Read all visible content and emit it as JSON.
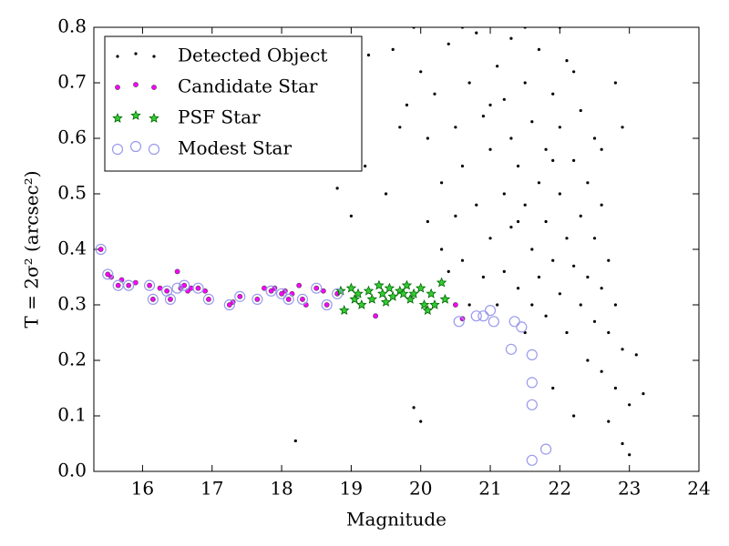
{
  "chart_data": {
    "type": "scatter",
    "xlabel": "Magnitude",
    "ylabel": "T = 2σ² (arcsec²)",
    "xlim": [
      15.3,
      24
    ],
    "ylim": [
      0,
      0.8
    ],
    "xticks": [
      16,
      17,
      18,
      19,
      20,
      21,
      22,
      23,
      24
    ],
    "yticks": [
      {
        "value": 0,
        "label": "0.0"
      },
      0.1,
      0.2,
      0.3,
      0.4,
      0.5,
      0.6,
      0.7,
      0.8
    ],
    "legend": "upper left",
    "series": [
      {
        "name": "Detected Object",
        "color": "#000000",
        "marker": "dot",
        "x": [
          18.8,
          19.0,
          19.1,
          19.2,
          19.25,
          19.5,
          19.6,
          19.9,
          20.0,
          18.2,
          19.7,
          19.8,
          19.9,
          20.0,
          20.1,
          20.1,
          20.2,
          20.3,
          20.3,
          20.4,
          20.4,
          20.5,
          20.5,
          20.6,
          20.6,
          20.7,
          20.7,
          20.8,
          20.8,
          20.9,
          20.9,
          21.0,
          21.0,
          21.1,
          21.1,
          21.2,
          21.2,
          21.2,
          21.3,
          21.3,
          21.3,
          21.4,
          21.4,
          21.5,
          21.5,
          21.5,
          21.6,
          21.6,
          21.6,
          21.7,
          21.7,
          21.7,
          21.8,
          21.8,
          21.8,
          21.9,
          21.9,
          21.9,
          22.0,
          22.0,
          22.0,
          22.1,
          22.1,
          22.1,
          22.2,
          22.2,
          22.2,
          22.3,
          22.3,
          22.3,
          22.4,
          22.4,
          22.4,
          22.5,
          22.5,
          22.5,
          22.6,
          22.6,
          22.6,
          22.7,
          22.7,
          22.7,
          22.8,
          22.8,
          22.9,
          22.9,
          23.0,
          23.1,
          23.2,
          23.0,
          22.8,
          22.9,
          22.0,
          21.5,
          20.6,
          21.0,
          21.4,
          21.9,
          22.2,
          22.6
        ],
        "values": [
          0.51,
          0.46,
          0.57,
          0.55,
          0.75,
          0.5,
          0.76,
          0.115,
          0.09,
          0.055,
          0.62,
          0.66,
          0.8,
          0.72,
          0.6,
          0.45,
          0.68,
          0.52,
          0.4,
          0.77,
          0.36,
          0.62,
          0.46,
          0.55,
          0.38,
          0.7,
          0.3,
          0.79,
          0.48,
          0.64,
          0.35,
          0.58,
          0.42,
          0.73,
          0.3,
          0.67,
          0.5,
          0.36,
          0.78,
          0.44,
          0.6,
          0.55,
          0.33,
          0.7,
          0.48,
          0.25,
          0.63,
          0.4,
          0.3,
          0.76,
          0.52,
          0.35,
          0.58,
          0.45,
          0.28,
          0.68,
          0.38,
          0.15,
          0.62,
          0.5,
          0.32,
          0.74,
          0.42,
          0.25,
          0.56,
          0.37,
          0.1,
          0.65,
          0.46,
          0.3,
          0.52,
          0.35,
          0.2,
          0.6,
          0.42,
          0.27,
          0.48,
          0.33,
          0.18,
          0.38,
          0.25,
          0.09,
          0.3,
          0.15,
          0.22,
          0.05,
          0.12,
          0.21,
          0.14,
          0.03,
          0.7,
          0.62,
          0.8,
          0.8,
          0.8,
          0.66,
          0.45,
          0.56,
          0.72,
          0.58
        ]
      },
      {
        "name": "Candidate Star",
        "color": "#ff00ff",
        "marker": "circle",
        "x": [
          15.4,
          15.5,
          15.55,
          15.65,
          15.7,
          15.8,
          15.9,
          16.1,
          16.15,
          16.25,
          16.35,
          16.4,
          16.5,
          16.55,
          16.6,
          16.65,
          16.7,
          16.8,
          16.9,
          16.95,
          17.25,
          17.3,
          17.4,
          17.65,
          17.75,
          17.85,
          17.9,
          18.0,
          18.05,
          18.1,
          18.15,
          18.25,
          18.3,
          18.35,
          18.5,
          18.6,
          18.65,
          18.8,
          19.35,
          20.5,
          20.6
        ],
        "values": [
          0.4,
          0.355,
          0.35,
          0.335,
          0.345,
          0.335,
          0.34,
          0.335,
          0.31,
          0.33,
          0.325,
          0.31,
          0.36,
          0.33,
          0.335,
          0.325,
          0.33,
          0.33,
          0.325,
          0.31,
          0.3,
          0.305,
          0.315,
          0.31,
          0.33,
          0.325,
          0.33,
          0.32,
          0.325,
          0.31,
          0.32,
          0.335,
          0.31,
          0.3,
          0.33,
          0.325,
          0.3,
          0.32,
          0.28,
          0.3,
          0.275
        ]
      },
      {
        "name": "PSF Star",
        "color": "#00aa00",
        "marker": "star",
        "x": [
          18.85,
          18.9,
          19.0,
          19.05,
          19.1,
          19.15,
          19.25,
          19.3,
          19.4,
          19.45,
          19.5,
          19.55,
          19.6,
          19.7,
          19.75,
          19.8,
          19.85,
          19.9,
          20.0,
          20.05,
          20.1,
          20.15,
          20.2,
          20.3,
          20.35
        ],
        "values": [
          0.325,
          0.29,
          0.33,
          0.31,
          0.32,
          0.3,
          0.325,
          0.31,
          0.335,
          0.32,
          0.305,
          0.33,
          0.315,
          0.325,
          0.32,
          0.335,
          0.31,
          0.32,
          0.33,
          0.3,
          0.29,
          0.32,
          0.3,
          0.34,
          0.31
        ]
      },
      {
        "name": "Modest Star",
        "color": "#9999ee",
        "marker": "ring",
        "x": [
          15.4,
          15.5,
          15.65,
          15.8,
          16.1,
          16.15,
          16.35,
          16.4,
          16.5,
          16.6,
          16.8,
          16.95,
          17.25,
          17.4,
          17.65,
          17.85,
          18.0,
          18.1,
          18.3,
          18.5,
          18.65,
          18.8,
          20.55,
          20.8,
          20.9,
          21.0,
          21.05,
          21.3,
          21.35,
          21.45,
          21.6,
          21.6,
          21.6,
          21.6,
          21.8
        ],
        "values": [
          0.4,
          0.355,
          0.335,
          0.335,
          0.335,
          0.31,
          0.325,
          0.31,
          0.33,
          0.335,
          0.33,
          0.31,
          0.3,
          0.315,
          0.31,
          0.325,
          0.32,
          0.31,
          0.31,
          0.33,
          0.3,
          0.32,
          0.27,
          0.28,
          0.28,
          0.29,
          0.27,
          0.22,
          0.27,
          0.26,
          0.21,
          0.12,
          0.02,
          0.16,
          0.04
        ]
      }
    ]
  }
}
